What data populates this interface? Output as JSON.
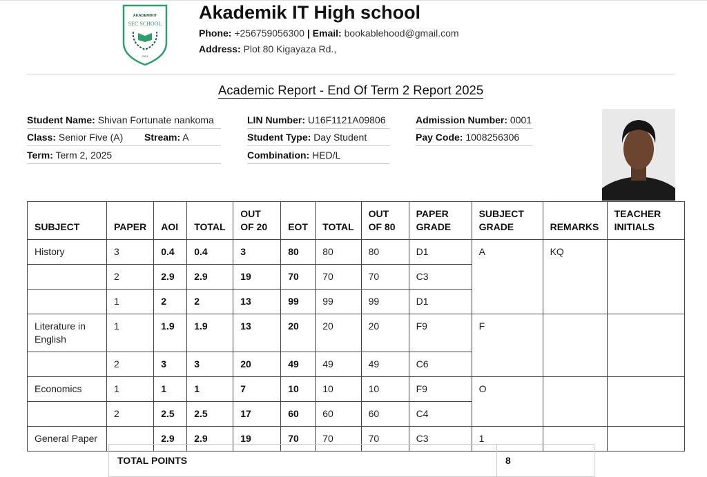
{
  "logo": {
    "top": "AKADEMIKIT",
    "middle": "SEC SCHOOL",
    "year": "2001"
  },
  "header": {
    "school_name": "Akademik IT High school",
    "phone_label": "Phone:",
    "phone": "+256759056300",
    "separator": "|",
    "email_label": "Email:",
    "email": "bookablehood@gmail.com",
    "address_label": "Address:",
    "address": "Plot 80 Kigayaza Rd.,"
  },
  "report_title": "Academic Report - End Of Term 2 Report 2025",
  "info": {
    "student_name": {
      "label": "Student Name:",
      "value": "Shivan Fortunate nankoma"
    },
    "class": {
      "label": "Class:",
      "value": "Senior Five (A)"
    },
    "stream": {
      "label": "Stream:",
      "value": "A"
    },
    "term": {
      "label": "Term:",
      "value": "Term 2, 2025"
    },
    "lin": {
      "label": "LIN Number:",
      "value": "U16F1121A09806"
    },
    "student_type": {
      "label": "Student Type:",
      "value": "Day Student"
    },
    "combination": {
      "label": "Combination:",
      "value": "HED/L"
    },
    "admission": {
      "label": "Admission Number:",
      "value": "0001"
    },
    "pay_code": {
      "label": "Pay Code:",
      "value": "1008256306"
    }
  },
  "table": {
    "headers": [
      "SUBJECT",
      "PAPER",
      "AOI",
      "TOTAL",
      "OUT OF 20",
      "EOT",
      "TOTAL",
      "OUT OF 80",
      "PAPER GRADE",
      "SUBJECT GRADE",
      "REMARKS",
      "TEACHER INITIALS"
    ],
    "subjects": [
      {
        "subject": "History",
        "grade": "A",
        "remarks": "KQ",
        "papers": [
          [
            3,
            0.4,
            0.4,
            3,
            80,
            80,
            80,
            "D1"
          ],
          [
            2,
            2.9,
            2.9,
            19,
            70,
            70,
            70,
            "C3"
          ],
          [
            1,
            2,
            2,
            13,
            99,
            99,
            99,
            "D1"
          ]
        ]
      },
      {
        "subject": "Literature in English",
        "grade": "F",
        "papers": [
          [
            1,
            1.9,
            1.9,
            13,
            20,
            20,
            20,
            "F9"
          ],
          [
            2,
            3,
            3,
            20,
            49,
            49,
            49,
            "C6"
          ]
        ]
      },
      {
        "subject": "Economics",
        "grade": "O",
        "papers": [
          [
            1,
            1,
            1,
            7,
            10,
            10,
            10,
            "F9"
          ],
          [
            2,
            2.5,
            2.5,
            17,
            60,
            60,
            60,
            "C4"
          ]
        ]
      },
      {
        "subject": "General Paper",
        "grade": "1",
        "papers": [
          [
            null,
            2.9,
            2.9,
            19,
            70,
            70,
            70,
            "C3"
          ]
        ]
      }
    ]
  },
  "totals": {
    "label": "TOTAL POINTS",
    "value": 8
  }
}
